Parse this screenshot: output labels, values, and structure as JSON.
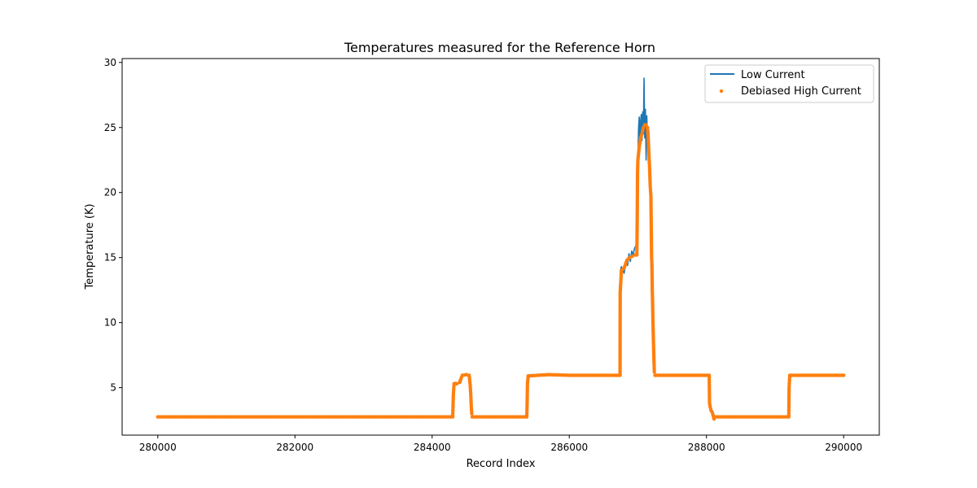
{
  "chart_data": {
    "type": "line",
    "title": "Temperatures measured for the Reference Horn",
    "xlabel": "Record Index",
    "ylabel": "Temperature (K)",
    "xlim": [
      279480,
      290520
    ],
    "ylim": [
      1.35,
      30.3
    ],
    "xticks": [
      280000,
      282000,
      284000,
      286000,
      288000,
      290000
    ],
    "yticks": [
      5,
      10,
      15,
      20,
      25,
      30
    ],
    "grid": false,
    "legend_position": "top-right",
    "series": [
      {
        "name": "Low Current",
        "style": "line",
        "color": "#1f77b4",
        "points": [
          [
            280000,
            2.75
          ],
          [
            284300,
            2.75
          ],
          [
            284310,
            5.3
          ],
          [
            284340,
            5.4
          ],
          [
            284380,
            5.35
          ],
          [
            284420,
            5.4
          ],
          [
            284440,
            5.9
          ],
          [
            284470,
            6.0
          ],
          [
            284500,
            5.95
          ],
          [
            284530,
            5.9
          ],
          [
            284555,
            5.5
          ],
          [
            284570,
            4.0
          ],
          [
            284585,
            2.75
          ],
          [
            285380,
            2.75
          ],
          [
            285390,
            5.9
          ],
          [
            285420,
            6.0
          ],
          [
            285600,
            6.0
          ],
          [
            285800,
            5.95
          ],
          [
            286000,
            5.95
          ],
          [
            286300,
            5.95
          ],
          [
            286600,
            5.95
          ],
          [
            286740,
            5.95
          ],
          [
            286745,
            14.0
          ],
          [
            286760,
            14.3
          ],
          [
            286780,
            14.0
          ],
          [
            286800,
            13.8
          ],
          [
            286820,
            14.5
          ],
          [
            286850,
            14.4
          ],
          [
            286870,
            15.3
          ],
          [
            286890,
            14.7
          ],
          [
            286910,
            15.5
          ],
          [
            286930,
            15.2
          ],
          [
            286950,
            15.7
          ],
          [
            286970,
            15.9
          ],
          [
            286985,
            15.3
          ],
          [
            286990,
            20.5
          ],
          [
            287000,
            22.5
          ],
          [
            287010,
            25.0
          ],
          [
            287020,
            25.8
          ],
          [
            287030,
            23.8
          ],
          [
            287040,
            25.5
          ],
          [
            287050,
            26.0
          ],
          [
            287060,
            24.0
          ],
          [
            287070,
            26.2
          ],
          [
            287080,
            24.5
          ],
          [
            287090,
            28.8
          ],
          [
            287100,
            24.2
          ],
          [
            287110,
            26.4
          ],
          [
            287120,
            22.5
          ],
          [
            287130,
            25.9
          ],
          [
            287140,
            23.9
          ],
          [
            287150,
            25.0
          ],
          [
            287160,
            24.7
          ],
          [
            287170,
            22.5
          ],
          [
            287180,
            20.5
          ],
          [
            287190,
            15.0
          ],
          [
            287200,
            12.0
          ],
          [
            287210,
            10.0
          ],
          [
            287220,
            9.0
          ],
          [
            287230,
            7.5
          ],
          [
            287240,
            6.2
          ],
          [
            287260,
            5.95
          ],
          [
            287500,
            5.95
          ],
          [
            287800,
            5.95
          ],
          [
            288040,
            5.95
          ],
          [
            288050,
            3.8
          ],
          [
            288070,
            3.3
          ],
          [
            288090,
            3.2
          ],
          [
            288110,
            2.9
          ],
          [
            288130,
            2.75
          ],
          [
            289200,
            2.75
          ],
          [
            289210,
            5.95
          ],
          [
            289400,
            6.0
          ],
          [
            289600,
            5.95
          ],
          [
            289800,
            6.0
          ],
          [
            290000,
            5.95
          ]
        ]
      },
      {
        "name": "Debiased High Current",
        "style": "scatter",
        "color": "#ff7f0e",
        "points": [
          [
            280000,
            2.75
          ],
          [
            284300,
            2.75
          ],
          [
            284310,
            4.5
          ],
          [
            284320,
            5.3
          ],
          [
            284360,
            5.3
          ],
          [
            284400,
            5.4
          ],
          [
            284440,
            5.95
          ],
          [
            284500,
            6.0
          ],
          [
            284540,
            5.95
          ],
          [
            284555,
            5.2
          ],
          [
            284565,
            4.3
          ],
          [
            284570,
            3.6
          ],
          [
            284578,
            3.0
          ],
          [
            284585,
            2.75
          ],
          [
            285380,
            2.75
          ],
          [
            285385,
            3.7
          ],
          [
            285390,
            5.3
          ],
          [
            285400,
            5.9
          ],
          [
            285700,
            6.0
          ],
          [
            286000,
            5.95
          ],
          [
            286740,
            5.95
          ],
          [
            286742,
            12.3
          ],
          [
            286760,
            14.0
          ],
          [
            286800,
            14.2
          ],
          [
            286840,
            14.8
          ],
          [
            286880,
            15.0
          ],
          [
            286920,
            15.1
          ],
          [
            286960,
            15.2
          ],
          [
            286985,
            15.2
          ],
          [
            286990,
            17.7
          ],
          [
            286995,
            21.5
          ],
          [
            287000,
            22.5
          ],
          [
            287020,
            23.5
          ],
          [
            287040,
            24.2
          ],
          [
            287060,
            24.5
          ],
          [
            287080,
            25.0
          ],
          [
            287100,
            25.2
          ],
          [
            287120,
            25.2
          ],
          [
            287140,
            25.0
          ],
          [
            287150,
            24.3
          ],
          [
            287160,
            23.0
          ],
          [
            287170,
            22.0
          ],
          [
            287180,
            20.5
          ],
          [
            287190,
            19.7
          ],
          [
            287200,
            15.0
          ],
          [
            287205,
            14.5
          ],
          [
            287210,
            12.5
          ],
          [
            287215,
            11.5
          ],
          [
            287220,
            10.0
          ],
          [
            287225,
            9.0
          ],
          [
            287230,
            8.0
          ],
          [
            287235,
            7.0
          ],
          [
            287240,
            6.2
          ],
          [
            287250,
            5.95
          ],
          [
            288040,
            5.95
          ],
          [
            288045,
            3.8
          ],
          [
            288055,
            3.5
          ],
          [
            288070,
            3.2
          ],
          [
            288090,
            3.0
          ],
          [
            288110,
            2.6
          ],
          [
            288130,
            2.75
          ],
          [
            289200,
            2.75
          ],
          [
            289205,
            5.0
          ],
          [
            289210,
            5.5
          ],
          [
            289215,
            5.95
          ],
          [
            290000,
            5.95
          ]
        ]
      }
    ]
  }
}
